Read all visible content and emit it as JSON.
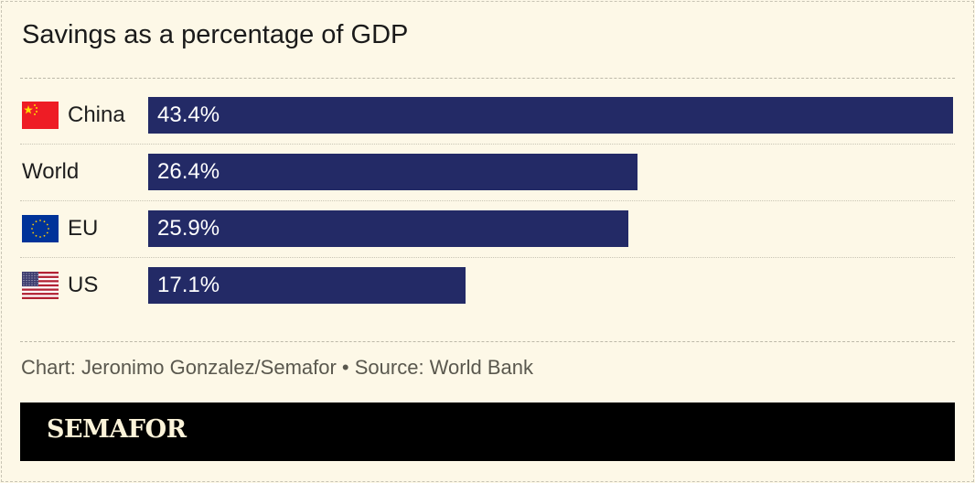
{
  "title": "Savings as a percentage of GDP",
  "chart_data": {
    "type": "bar",
    "orientation": "horizontal",
    "categories": [
      "China",
      "World",
      "EU",
      "US"
    ],
    "values": [
      43.4,
      26.4,
      25.9,
      17.1
    ],
    "value_labels": [
      "43.4%",
      "26.4%",
      "25.9%",
      "17.1%"
    ],
    "flags": [
      "china-flag",
      "",
      "eu-flag",
      "us-flag"
    ],
    "bar_color": "#232a66",
    "xlim": [
      0,
      43.4
    ],
    "grid": false
  },
  "source": "Chart: Jeronimo Gonzalez/Semafor • Source: World Bank",
  "logo": "SEMAFOR"
}
